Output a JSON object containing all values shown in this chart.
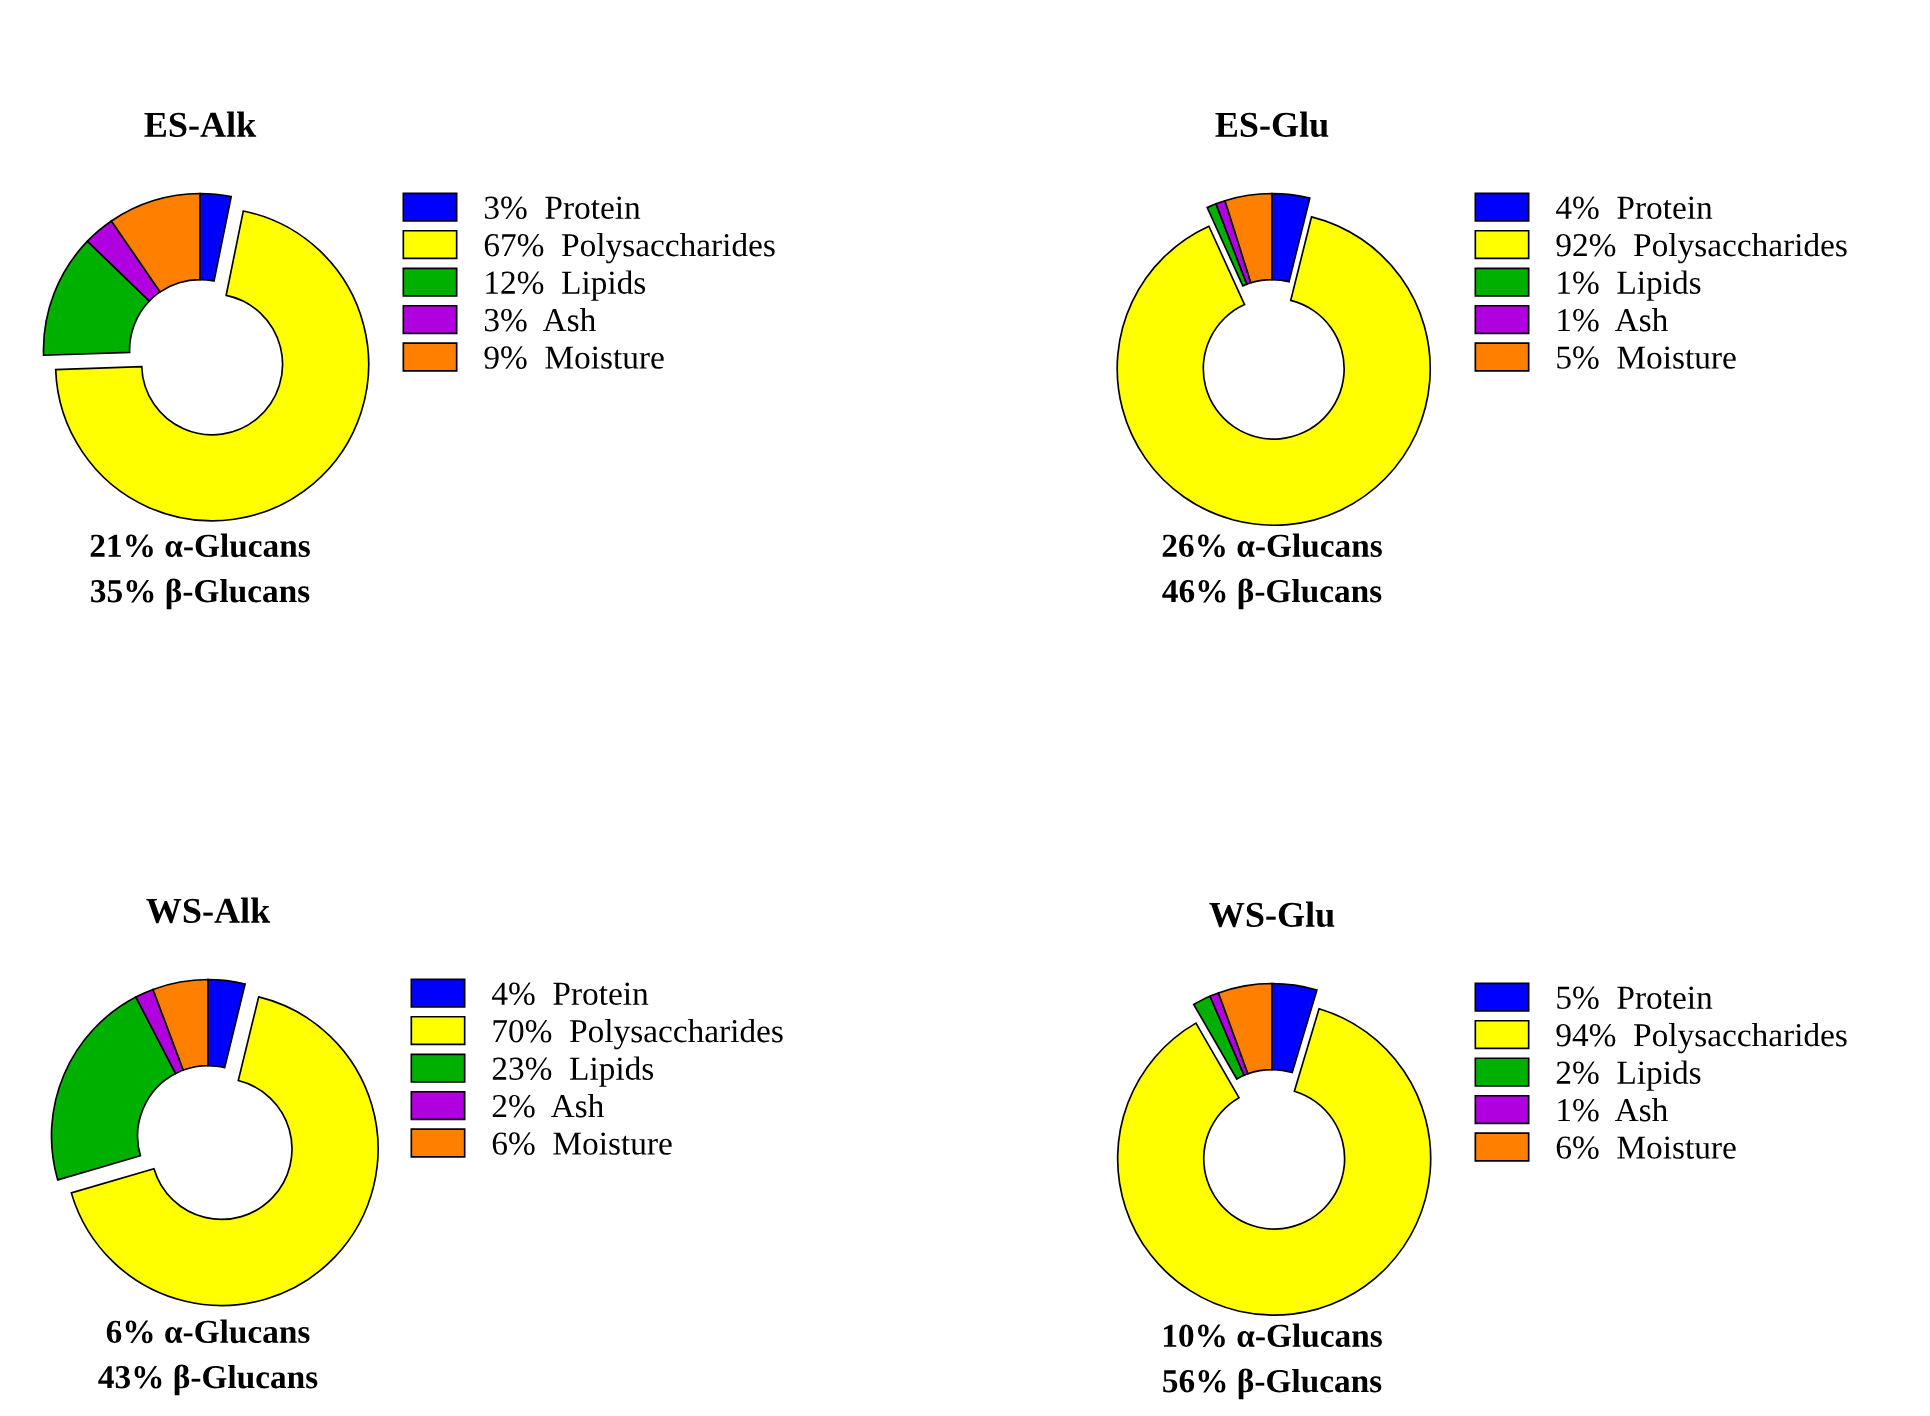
{
  "chart_data": [
    {
      "type": "donut",
      "title": "ES-Alk",
      "categories": [
        "Protein",
        "Polysaccharides",
        "Lipids",
        "Ash",
        "Moisture"
      ],
      "values": [
        3,
        67,
        12,
        3,
        9
      ],
      "value_labels": [
        "3%",
        "67%",
        "12%",
        "3%",
        "9%"
      ],
      "colors": [
        "#0000ff",
        "#ffff00",
        "#00b000",
        "#b000e0",
        "#ff8000"
      ],
      "legend": "right",
      "annotations": [
        "21% α-Glucans",
        "35% β-Glucans"
      ]
    },
    {
      "type": "donut",
      "title": "ES-Glu",
      "categories": [
        "Protein",
        "Polysaccharides",
        "Lipids",
        "Ash",
        "Moisture"
      ],
      "values": [
        4,
        92,
        1,
        1,
        5
      ],
      "value_labels": [
        "4%",
        "92%",
        "1%",
        "1%",
        "5%"
      ],
      "colors": [
        "#0000ff",
        "#ffff00",
        "#00b000",
        "#b000e0",
        "#ff8000"
      ],
      "legend": "right",
      "annotations": [
        "26% α-Glucans",
        "46% β-Glucans"
      ]
    },
    {
      "type": "donut",
      "title": "WS-Alk",
      "categories": [
        "Protein",
        "Polysaccharides",
        "Lipids",
        "Ash",
        "Moisture"
      ],
      "values": [
        4,
        70,
        23,
        2,
        6
      ],
      "value_labels": [
        "4%",
        "70%",
        "23%",
        "2%",
        "6%"
      ],
      "colors": [
        "#0000ff",
        "#ffff00",
        "#00b000",
        "#b000e0",
        "#ff8000"
      ],
      "legend": "right",
      "annotations": [
        "6% α-Glucans",
        "43% β-Glucans"
      ]
    },
    {
      "type": "donut",
      "title": "WS-Glu",
      "categories": [
        "Protein",
        "Polysaccharides",
        "Lipids",
        "Ash",
        "Moisture"
      ],
      "values": [
        5,
        94,
        2,
        1,
        6
      ],
      "value_labels": [
        "5%",
        "94%",
        "2%",
        "1%",
        "6%"
      ],
      "colors": [
        "#0000ff",
        "#ffff00",
        "#00b000",
        "#b000e0",
        "#ff8000"
      ],
      "legend": "right",
      "annotations": [
        "10% α-Glucans",
        "56% β-Glucans"
      ]
    }
  ]
}
